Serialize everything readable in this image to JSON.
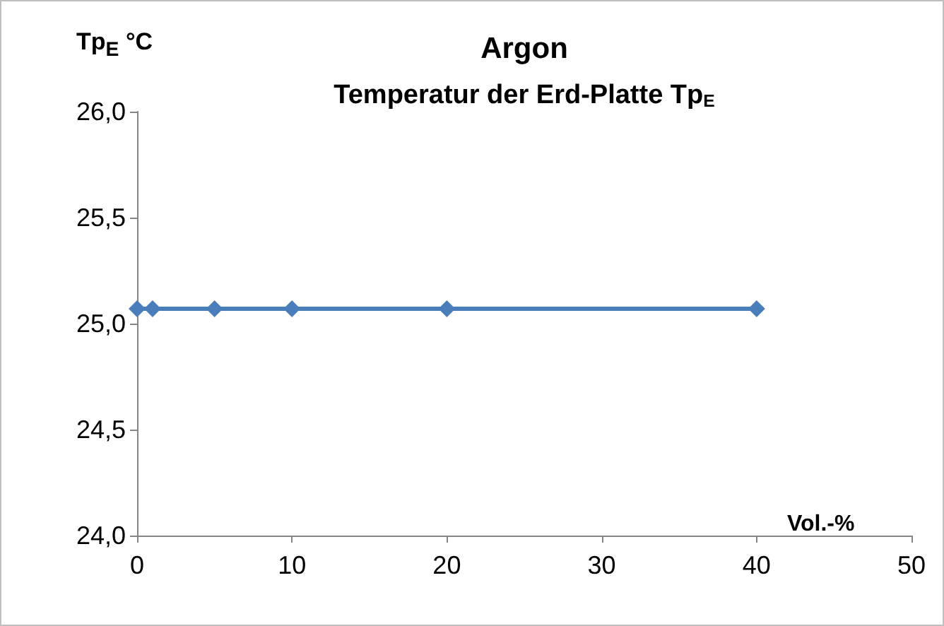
{
  "chart_data": {
    "type": "line",
    "title": "Argon",
    "subtitle": "Temperatur der Erd-Platte Tp$_{E}$",
    "xlabel": "Vol.-%",
    "ylabel": "Tp$_{E}$ °C",
    "x": [
      0,
      1,
      5,
      10,
      20,
      40
    ],
    "series": [
      {
        "color": "#4a7ebb",
        "values": [
          25.07,
          25.07,
          25.07,
          25.07,
          25.07,
          25.07
        ]
      }
    ],
    "xlim": [
      0,
      50
    ],
    "xticks": [
      0,
      10,
      20,
      30,
      40,
      50
    ],
    "ylim": [
      24,
      26
    ],
    "yticks": [
      {
        "value": 24,
        "label": "24,0"
      },
      {
        "value": 24.5,
        "label": "24,5"
      },
      {
        "value": 25,
        "label": "25,0"
      },
      {
        "value": 25.5,
        "label": "25,5"
      },
      {
        "value": 26,
        "label": "26,0"
      }
    ],
    "grid": false,
    "marker": "diamond",
    "line_style": "solid"
  }
}
